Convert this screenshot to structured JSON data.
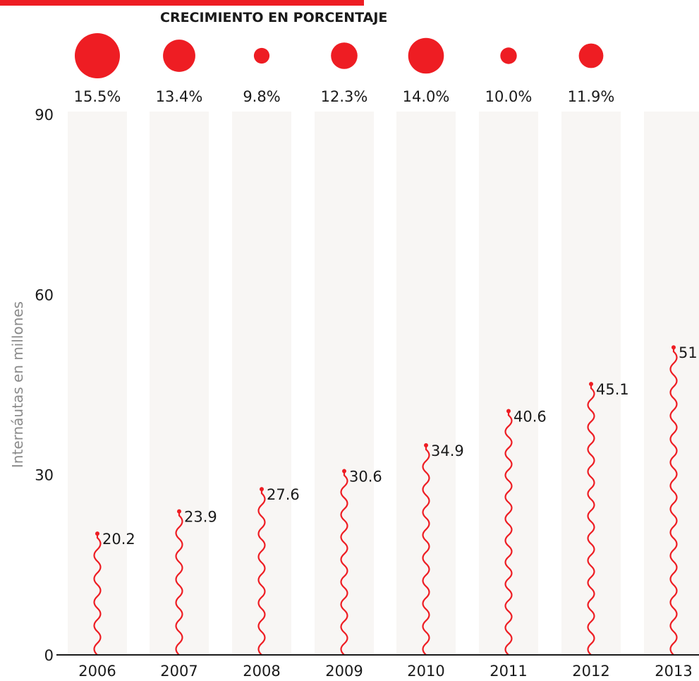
{
  "header": {
    "title": "CRECIMIENTO EN PORCENTAJE"
  },
  "colors": {
    "accent": "#ee1d23",
    "band": "#f8f6f4",
    "text": "#1a1a1a",
    "axis_label": "#8a8a8a"
  },
  "chart_data": {
    "type": "bar",
    "categories": [
      "2006",
      "2007",
      "2008",
      "2009",
      "2010",
      "2011",
      "2012",
      "2013"
    ],
    "values": [
      20.2,
      23.9,
      27.6,
      30.6,
      34.9,
      40.6,
      45.1,
      51.2
    ],
    "value_labels": [
      "20.2",
      "23.9",
      "27.6",
      "30.6",
      "34.9",
      "40.6",
      "45.1",
      "51.2"
    ],
    "growth": [
      15.5,
      13.4,
      9.8,
      12.3,
      14.0,
      10.0,
      11.9
    ],
    "growth_labels": [
      "15.5%",
      "13.4%",
      "9.8%",
      "12.3%",
      "14.0%",
      "10.0%",
      "11.9%"
    ],
    "ylabel": "Internáutas en millones",
    "ylim": [
      0,
      90
    ],
    "yticks": [
      0,
      30,
      60,
      90
    ]
  }
}
